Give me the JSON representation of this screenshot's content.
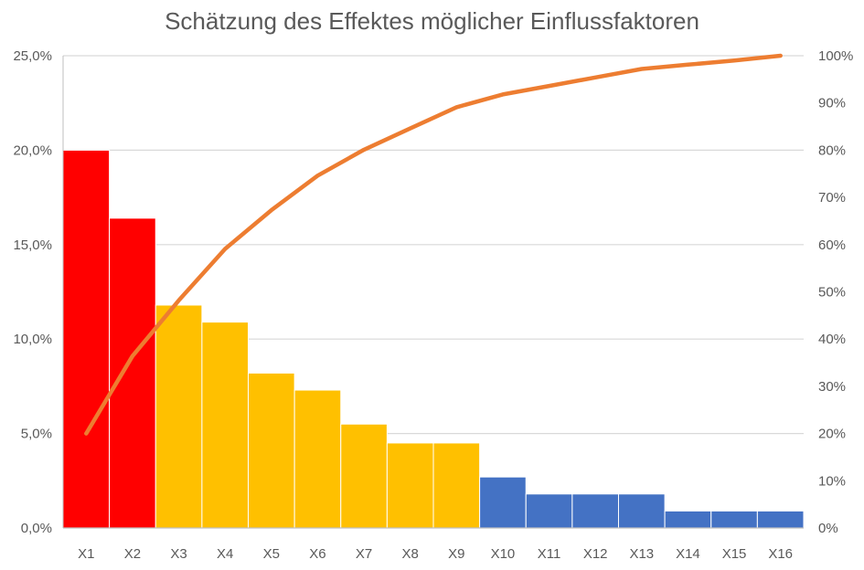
{
  "chart_data": {
    "type": "bar",
    "title": "Schätzung des Effektes möglicher Einflussfaktoren",
    "xlabel": "",
    "ylabel": "",
    "categories": [
      "X1",
      "X2",
      "X3",
      "X4",
      "X5",
      "X6",
      "X7",
      "X8",
      "X9",
      "X10",
      "X11",
      "X12",
      "X13",
      "X14",
      "X15",
      "X16"
    ],
    "series": [
      {
        "type": "bar",
        "axis": "left",
        "values": [
          20.0,
          16.4,
          11.8,
          10.9,
          8.2,
          7.3,
          5.5,
          4.5,
          4.5,
          2.7,
          1.8,
          1.8,
          1.8,
          0.9,
          0.9,
          0.9
        ],
        "colors": [
          "#ff0000",
          "#ff0000",
          "#ffc000",
          "#ffc000",
          "#ffc000",
          "#ffc000",
          "#ffc000",
          "#ffc000",
          "#ffc000",
          "#4472c4",
          "#4472c4",
          "#4472c4",
          "#4472c4",
          "#4472c4",
          "#4472c4",
          "#4472c4"
        ]
      },
      {
        "type": "line",
        "axis": "right",
        "color": "#ed7d31",
        "values": [
          20.0,
          36.4,
          48.2,
          59.1,
          67.3,
          74.6,
          80.1,
          84.6,
          89.1,
          91.8,
          93.6,
          95.4,
          97.2,
          98.1,
          99.0,
          100.0
        ]
      }
    ],
    "y_left": {
      "ylim": [
        0,
        25
      ],
      "ticks": [
        "0,0%",
        "5,0%",
        "10,0%",
        "15,0%",
        "20,0%",
        "25,0%"
      ]
    },
    "y_right": {
      "ylim": [
        0,
        100
      ],
      "ticks": [
        "0%",
        "10%",
        "20%",
        "30%",
        "40%",
        "50%",
        "60%",
        "70%",
        "80%",
        "90%",
        "100%"
      ]
    },
    "grid": true,
    "legend": "none",
    "colors": {
      "grid": "#d9d9d9",
      "axis": "#bfbfbf",
      "text": "#595959"
    }
  }
}
